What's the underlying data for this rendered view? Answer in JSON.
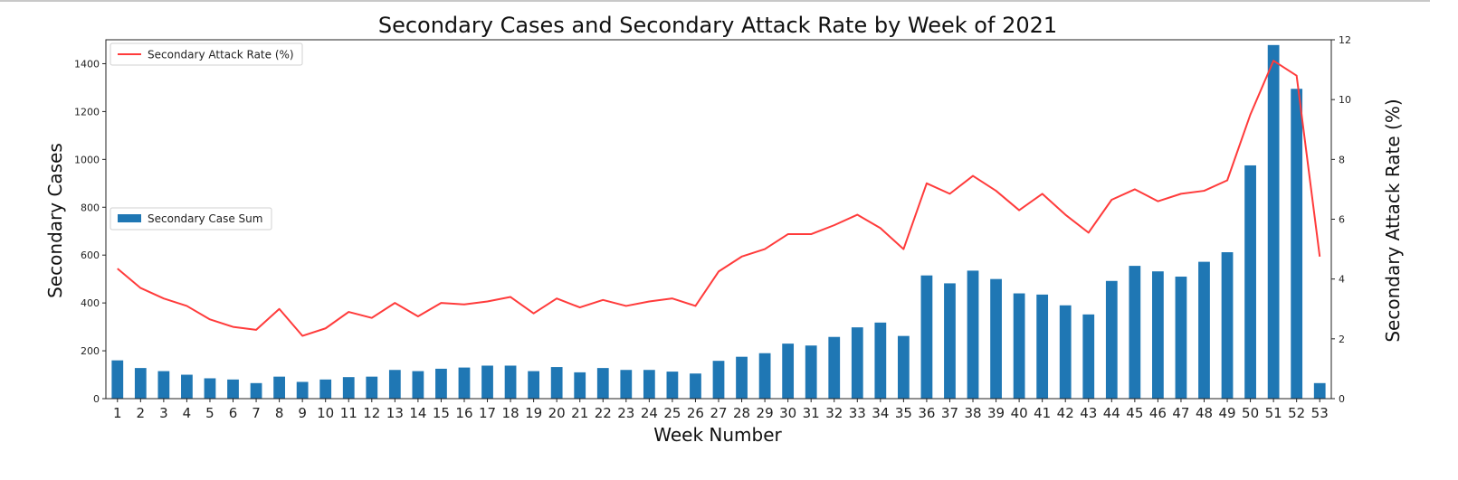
{
  "chart_data": {
    "type": "bar+line",
    "title": "Secondary Cases and Secondary Attack Rate by Week of 2021",
    "xlabel": "Week Number",
    "ylabel_left": "Secondary Cases",
    "ylabel_right": "Secondary Attack Rate (%)",
    "categories": [
      "1",
      "2",
      "3",
      "4",
      "5",
      "6",
      "7",
      "8",
      "9",
      "10",
      "11",
      "12",
      "13",
      "14",
      "15",
      "16",
      "17",
      "18",
      "19",
      "20",
      "21",
      "22",
      "23",
      "24",
      "25",
      "26",
      "27",
      "28",
      "29",
      "30",
      "31",
      "32",
      "33",
      "34",
      "35",
      "36",
      "37",
      "38",
      "39",
      "40",
      "41",
      "42",
      "43",
      "44",
      "45",
      "46",
      "47",
      "48",
      "49",
      "50",
      "51",
      "52",
      "53"
    ],
    "ylim_left": [
      0,
      1500
    ],
    "ylim_right": [
      0,
      12
    ],
    "yticks_left": [
      0,
      200,
      400,
      600,
      800,
      1000,
      1200,
      1400
    ],
    "yticks_right": [
      0,
      2,
      4,
      6,
      8,
      10,
      12
    ],
    "series": [
      {
        "name": "Secondary Case Sum",
        "kind": "bar",
        "axis": "left",
        "color": "#1f77b4",
        "values": [
          160,
          128,
          115,
          100,
          85,
          80,
          65,
          92,
          70,
          80,
          90,
          92,
          120,
          115,
          125,
          130,
          138,
          138,
          115,
          132,
          110,
          128,
          120,
          120,
          113,
          105,
          158,
          175,
          190,
          230,
          222,
          258,
          298,
          318,
          262,
          515,
          482,
          535,
          500,
          440,
          435,
          390,
          352,
          492,
          555,
          532,
          510,
          572,
          612,
          975,
          1478,
          1295,
          65
        ]
      },
      {
        "name": "Secondary Attack Rate (%)",
        "kind": "line",
        "axis": "right",
        "color": "#ff3b3b",
        "values": [
          4.35,
          3.7,
          3.35,
          3.1,
          2.65,
          2.4,
          2.3,
          3.0,
          2.1,
          2.35,
          2.9,
          2.7,
          3.2,
          2.75,
          3.2,
          3.15,
          3.25,
          3.4,
          2.85,
          3.35,
          3.05,
          3.3,
          3.1,
          3.25,
          3.35,
          3.1,
          4.25,
          4.75,
          5.0,
          5.5,
          5.5,
          5.8,
          6.15,
          5.7,
          5.0,
          7.2,
          6.85,
          7.45,
          6.95,
          6.3,
          6.85,
          6.15,
          5.55,
          6.65,
          7.0,
          6.6,
          6.85,
          6.95,
          7.3,
          9.5,
          11.3,
          10.8,
          4.75
        ]
      }
    ],
    "legends": [
      {
        "label": "Secondary Attack Rate (%)",
        "placement": "top-left"
      },
      {
        "label": "Secondary Case Sum",
        "placement": "center-left"
      }
    ],
    "grid": false
  }
}
